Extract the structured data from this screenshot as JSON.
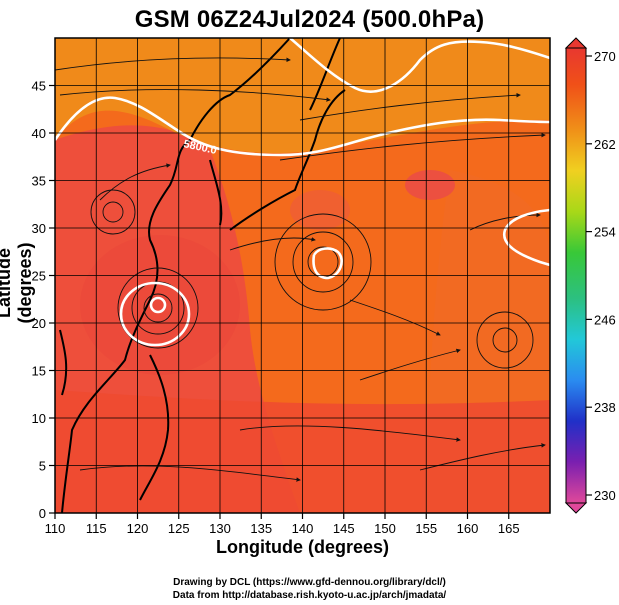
{
  "title": "GSM 06Z24Jul2024 (500.0hPa)",
  "x_axis": {
    "label": "Longitude (degrees)",
    "range": [
      110,
      170
    ],
    "ticks": [
      "110",
      "115",
      "120",
      "125",
      "130",
      "135",
      "140",
      "145",
      "150",
      "155",
      "160",
      "165"
    ]
  },
  "y_axis": {
    "label": "Latitude (degrees)",
    "range": [
      0,
      50
    ],
    "ticks": [
      "0",
      "5",
      "10",
      "15",
      "20",
      "25",
      "30",
      "35",
      "40",
      "45"
    ]
  },
  "colorbar": {
    "ticks": [
      "270",
      "262",
      "254",
      "246",
      "238",
      "230"
    ],
    "range": [
      230,
      270
    ],
    "colors": [
      "#e0489a",
      "#7a1fb0",
      "#2030c8",
      "#2a8cf0",
      "#22c8d8",
      "#2cc080",
      "#38c838",
      "#a8d818",
      "#f0d020",
      "#f09018",
      "#f05018",
      "#e83830"
    ]
  },
  "contour": {
    "label": "5800.0",
    "color": "#ffffff"
  },
  "field_colors": {
    "high": "#ee4f3b",
    "mid": "#f46a1c",
    "low": "#f08a1a",
    "warm_patch": "#e84a3a"
  },
  "credits": {
    "line1": "Drawing by DCL (https://www.gfd-dennou.org/library/dcl/)",
    "line2": "Data from http://database.rish.kyoto-u.ac.jp/arch/jmadata/"
  }
}
